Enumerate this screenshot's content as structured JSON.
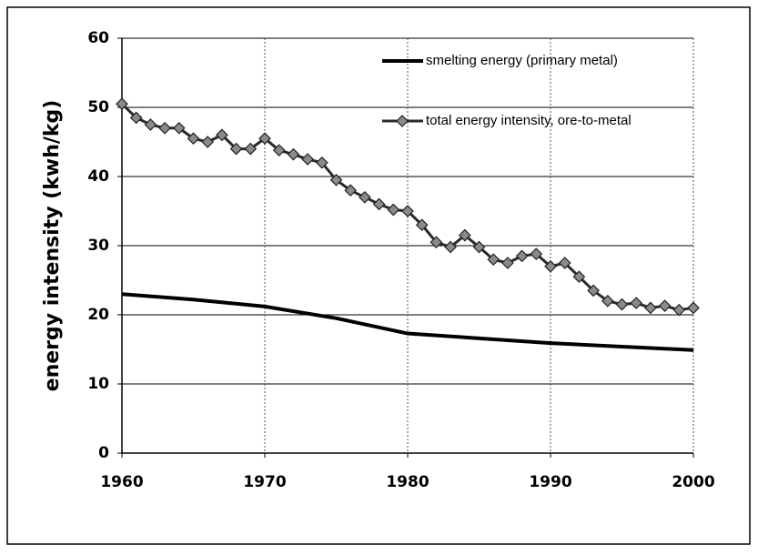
{
  "chart_data": {
    "type": "line",
    "ylabel": "energy intensity (kwh/kg)",
    "xlim": [
      1960,
      2000
    ],
    "xticks": [
      1960,
      1970,
      1980,
      1990,
      2000
    ],
    "ylim": [
      0,
      60
    ],
    "yticks": [
      0,
      10,
      20,
      30,
      40,
      50,
      60
    ],
    "grid": true,
    "legend": "upper right",
    "series": [
      {
        "name": "smelting energy (primary metal)",
        "color": "#000000",
        "marker": false,
        "x": [
          1960,
          1965,
          1970,
          1975,
          1980,
          1985,
          1990,
          1995,
          2000
        ],
        "values": [
          23,
          22.2,
          21.2,
          19.5,
          17.3,
          16.6,
          15.9,
          15.4,
          14.9
        ]
      },
      {
        "name": "total energy intensity, ore-to-metal",
        "color": "#2a2a2a",
        "marker": true,
        "x": [
          1960,
          1961,
          1962,
          1963,
          1964,
          1965,
          1966,
          1967,
          1968,
          1969,
          1970,
          1971,
          1972,
          1973,
          1974,
          1975,
          1976,
          1977,
          1978,
          1979,
          1980,
          1981,
          1982,
          1983,
          1984,
          1985,
          1986,
          1987,
          1988,
          1989,
          1990,
          1991,
          1992,
          1993,
          1994,
          1995,
          1996,
          1997,
          1998,
          1999,
          2000
        ],
        "values": [
          50.5,
          48.5,
          47.5,
          47,
          47,
          45.5,
          45,
          46,
          44,
          44,
          45.5,
          43.8,
          43.2,
          42.5,
          42,
          39.5,
          38,
          37,
          36,
          35.2,
          35,
          33,
          30.5,
          29.8,
          31.5,
          29.8,
          28,
          27.5,
          28.5,
          28.8,
          27,
          27.5,
          25.5,
          23.5,
          22,
          21.5,
          21.7,
          21,
          21.3,
          20.7,
          21
        ]
      }
    ]
  }
}
